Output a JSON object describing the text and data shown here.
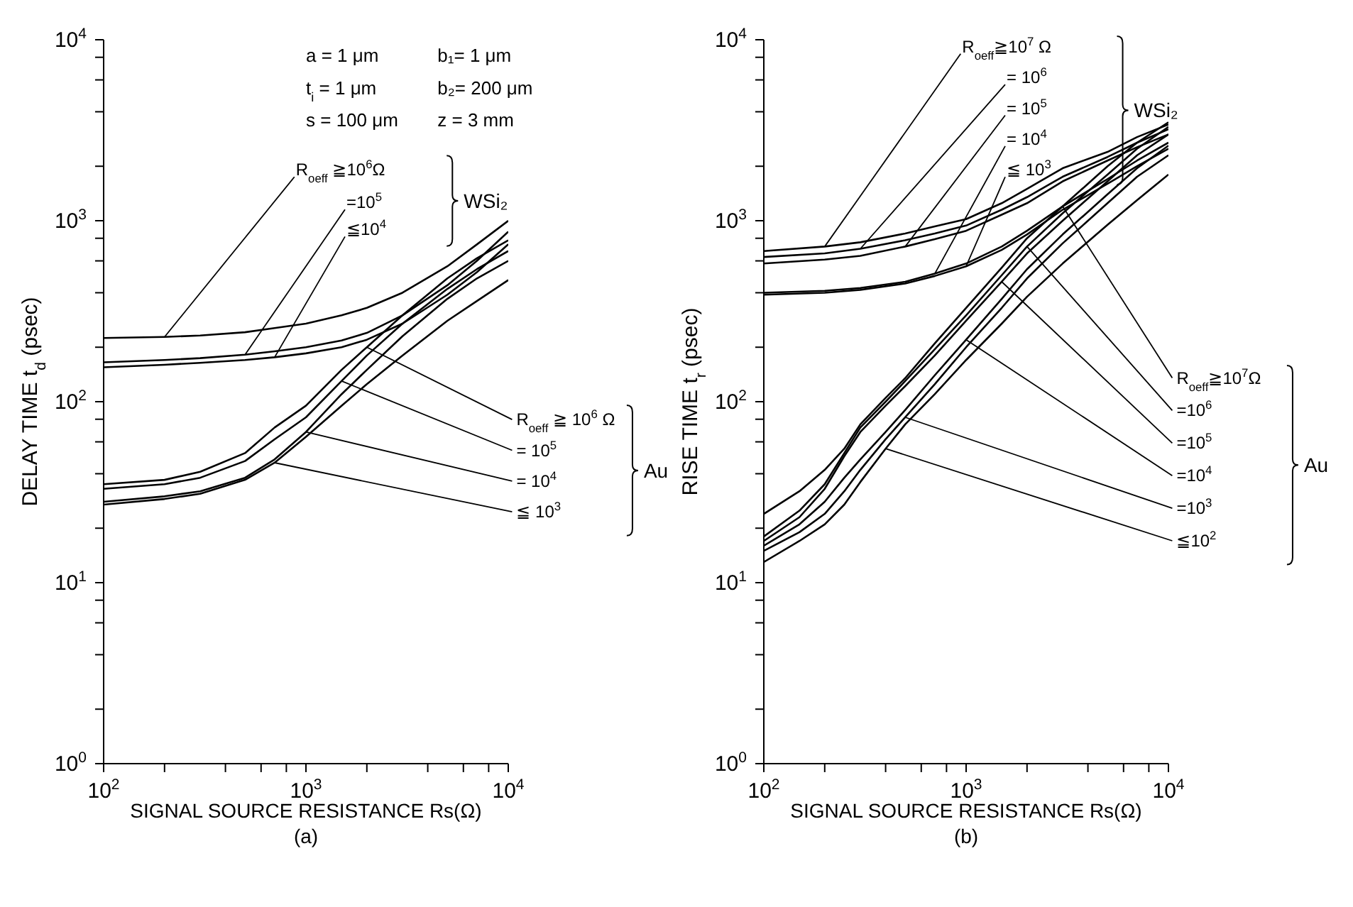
{
  "chart_data": [
    {
      "type": "line",
      "xlabel": "SIGNAL SOURCE RESISTANCE  Rs(Ω)",
      "ylabel": "DELAY TIME  t$_{d}$ (psec)",
      "log": "xy",
      "xlim": [
        100,
        10000
      ],
      "ylim": [
        1,
        10000
      ],
      "xticks": [
        {
          "value": 100,
          "label": "10$^{2}$"
        },
        {
          "value": 200,
          "label": null
        },
        {
          "value": 400,
          "label": null
        },
        {
          "value": 600,
          "label": null
        },
        {
          "value": 800,
          "label": null
        },
        {
          "value": 1000,
          "label": "10$^{3}$"
        },
        {
          "value": 2000,
          "label": null
        },
        {
          "value": 4000,
          "label": null
        },
        {
          "value": 6000,
          "label": null
        },
        {
          "value": 8000,
          "label": null
        },
        {
          "value": 10000,
          "label": "10$^{4}$"
        }
      ],
      "yticks": [
        {
          "value": 1,
          "label": "10$^{0}$"
        },
        {
          "value": 2,
          "label": null
        },
        {
          "value": 4,
          "label": null
        },
        {
          "value": 6,
          "label": null
        },
        {
          "value": 8,
          "label": null
        },
        {
          "value": 10,
          "label": "10$^{1}$"
        },
        {
          "value": 20,
          "label": null
        },
        {
          "value": 40,
          "label": null
        },
        {
          "value": 60,
          "label": null
        },
        {
          "value": 80,
          "label": null
        },
        {
          "value": 100,
          "label": "10$^{2}$"
        },
        {
          "value": 200,
          "label": null
        },
        {
          "value": 400,
          "label": null
        },
        {
          "value": 600,
          "label": null
        },
        {
          "value": 800,
          "label": null
        },
        {
          "value": 1000,
          "label": "10$^{3}$"
        },
        {
          "value": 2000,
          "label": null
        },
        {
          "value": 4000,
          "label": null
        },
        {
          "value": 6000,
          "label": null
        },
        {
          "value": 8000,
          "label": null
        },
        {
          "value": 10000,
          "label": "10$^{4}$"
        }
      ],
      "grid": false,
      "marker": "none",
      "line_style": "solid",
      "x": [
        100,
        200,
        300,
        500,
        700,
        1000,
        1500,
        2000,
        3000,
        5000,
        7000,
        10000
      ],
      "series": [
        {
          "name": "R$_{oeff}$ ≧10$^{6}$Ω",
          "color": "#000000",
          "values": [
            225,
            228,
            232,
            242,
            255,
            270,
            300,
            330,
            400,
            560,
            740,
            1000
          ]
        },
        {
          "name": "=10$^{5}$",
          "color": "#000000",
          "values": [
            165,
            170,
            174,
            182,
            190,
            200,
            218,
            240,
            300,
            440,
            600,
            870
          ]
        },
        {
          "name": "≦10$^{4}$",
          "color": "#000000",
          "values": [
            155,
            160,
            164,
            170,
            176,
            185,
            200,
            220,
            270,
            390,
            520,
            740
          ]
        },
        {
          "name": "R$_{oeff}$ ≧ 10$^{6}$ Ω",
          "color": "#000000",
          "values": [
            35,
            37,
            41,
            52,
            72,
            95,
            150,
            200,
            300,
            480,
            620,
            780
          ]
        },
        {
          "name": "= 10$^{5}$",
          "color": "#000000",
          "values": [
            33,
            35,
            38,
            47,
            62,
            82,
            130,
            180,
            270,
            420,
            540,
            680
          ]
        },
        {
          "name": "= 10$^{4}$",
          "color": "#000000",
          "values": [
            28,
            30,
            32,
            38,
            48,
            68,
            110,
            150,
            230,
            370,
            480,
            600
          ]
        },
        {
          "name": "≦ 10$^{3}$",
          "color": "#000000",
          "values": [
            27,
            29,
            31,
            37,
            46,
            64,
            95,
            125,
            180,
            280,
            360,
            470
          ]
        }
      ],
      "annotations": [
        "a = 1 μm",
        "t$_{i}$ = 1 μm",
        "s = 100 μm",
        "b₁= 1 μm",
        "b₂= 200 μm",
        "z = 3 mm",
        "WSi₂",
        "Au",
        "(a)"
      ]
    },
    {
      "type": "line",
      "xlabel": "SIGNAL SOURCE RESISTANCE  Rs(Ω)",
      "ylabel": "RISE  TIME  t$_{r}$ (psec)",
      "log": "xy",
      "xlim": [
        100,
        10000
      ],
      "ylim": [
        1,
        10000
      ],
      "xticks": [
        {
          "value": 100,
          "label": "10$^{2}$"
        },
        {
          "value": 200,
          "label": null
        },
        {
          "value": 400,
          "label": null
        },
        {
          "value": 600,
          "label": null
        },
        {
          "value": 800,
          "label": null
        },
        {
          "value": 1000,
          "label": "10$^{3}$"
        },
        {
          "value": 2000,
          "label": null
        },
        {
          "value": 4000,
          "label": null
        },
        {
          "value": 6000,
          "label": null
        },
        {
          "value": 8000,
          "label": null
        },
        {
          "value": 10000,
          "label": "10$^{4}$"
        }
      ],
      "yticks": [
        {
          "value": 1,
          "label": "10$^{0}$"
        },
        {
          "value": 2,
          "label": null
        },
        {
          "value": 4,
          "label": null
        },
        {
          "value": 6,
          "label": null
        },
        {
          "value": 8,
          "label": null
        },
        {
          "value": 10,
          "label": "10$^{1}$"
        },
        {
          "value": 20,
          "label": null
        },
        {
          "value": 40,
          "label": null
        },
        {
          "value": 60,
          "label": null
        },
        {
          "value": 80,
          "label": null
        },
        {
          "value": 100,
          "label": "10$^{2}$"
        },
        {
          "value": 200,
          "label": null
        },
        {
          "value": 400,
          "label": null
        },
        {
          "value": 600,
          "label": null
        },
        {
          "value": 800,
          "label": null
        },
        {
          "value": 1000,
          "label": "10$^{3}$"
        },
        {
          "value": 2000,
          "label": null
        },
        {
          "value": 4000,
          "label": null
        },
        {
          "value": 6000,
          "label": null
        },
        {
          "value": 8000,
          "label": null
        },
        {
          "value": 10000,
          "label": "10$^{4}$"
        }
      ],
      "grid": false,
      "marker": "none",
      "line_style": "solid",
      "series": [
        {
          "name": "R$_{oeff}$≧10$^{7}$ Ω",
          "color": "#000000",
          "x": [
            100,
            200,
            300,
            500,
            700,
            1000,
            1500,
            2000,
            3000,
            5000,
            7000,
            10000
          ],
          "values": [
            680,
            720,
            760,
            850,
            930,
            1020,
            1250,
            1500,
            1950,
            2400,
            2900,
            3400
          ]
        },
        {
          "name": "= 10$^{6}$",
          "color": "#000000",
          "x": [
            100,
            200,
            300,
            500,
            700,
            1000,
            1500,
            2000,
            3000,
            5000,
            7000,
            10000
          ],
          "values": [
            630,
            660,
            700,
            780,
            850,
            940,
            1150,
            1350,
            1750,
            2250,
            2700,
            3200
          ]
        },
        {
          "name": "= 10$^{5}$",
          "color": "#000000",
          "x": [
            100,
            200,
            300,
            500,
            700,
            1000,
            1500,
            2000,
            3000,
            5000,
            7000,
            10000
          ],
          "values": [
            580,
            610,
            640,
            720,
            790,
            880,
            1080,
            1250,
            1650,
            2150,
            2550,
            3000
          ]
        },
        {
          "name": "= 10$^{4}$",
          "color": "#000000",
          "x": [
            100,
            200,
            300,
            500,
            700,
            1000,
            1500,
            2000,
            3000,
            5000,
            7000,
            10000
          ],
          "values": [
            400,
            410,
            425,
            460,
            510,
            580,
            720,
            880,
            1200,
            1700,
            2150,
            2700
          ]
        },
        {
          "name": "≦ 10$^{3}$",
          "color": "#000000",
          "x": [
            100,
            200,
            300,
            500,
            700,
            1000,
            1500,
            2000,
            3000,
            5000,
            7000,
            10000
          ],
          "values": [
            390,
            400,
            415,
            450,
            495,
            560,
            690,
            840,
            1150,
            1600,
            2000,
            2500
          ]
        },
        {
          "name": "R$_{oeff}$≧10$^{7}$Ω",
          "color": "#000000",
          "x": [
            100,
            150,
            200,
            250,
            300,
            400,
            500,
            700,
            1000,
            1500,
            2000,
            3000,
            5000,
            7000,
            10000
          ],
          "values": [
            24,
            32,
            42,
            55,
            75,
            105,
            135,
            210,
            330,
            550,
            800,
            1200,
            2000,
            2700,
            3500
          ]
        },
        {
          "name": "=10$^{6}$",
          "color": "#000000",
          "x": [
            100,
            150,
            200,
            250,
            300,
            400,
            500,
            700,
            1000,
            1500,
            2000,
            3000,
            5000,
            7000,
            10000
          ],
          "values": [
            18,
            25,
            35,
            52,
            72,
            100,
            130,
            195,
            300,
            500,
            720,
            1100,
            1800,
            2500,
            3300
          ]
        },
        {
          "name": "=10$^{5}$",
          "color": "#000000",
          "x": [
            100,
            150,
            200,
            250,
            300,
            400,
            500,
            700,
            1000,
            1500,
            2000,
            3000,
            5000,
            7000,
            10000
          ],
          "values": [
            17,
            23,
            33,
            50,
            68,
            95,
            122,
            180,
            280,
            460,
            660,
            1000,
            1650,
            2300,
            3000
          ]
        },
        {
          "name": "=10$^{4}$",
          "color": "#000000",
          "x": [
            100,
            150,
            200,
            250,
            300,
            400,
            500,
            700,
            1000,
            1500,
            2000,
            3000,
            5000,
            7000,
            10000
          ],
          "values": [
            16,
            21,
            28,
            38,
            48,
            68,
            90,
            140,
            220,
            370,
            540,
            840,
            1400,
            1950,
            2600
          ]
        },
        {
          "name": "=10$^{3}$",
          "color": "#000000",
          "x": [
            100,
            150,
            200,
            250,
            300,
            400,
            500,
            700,
            1000,
            1500,
            2000,
            3000,
            5000,
            7000,
            10000
          ],
          "values": [
            15,
            19,
            24,
            32,
            42,
            62,
            82,
            125,
            200,
            330,
            480,
            750,
            1250,
            1750,
            2300
          ]
        },
        {
          "name": "≦10$^{2}$",
          "color": "#000000",
          "x": [
            100,
            150,
            200,
            250,
            300,
            400,
            500,
            700,
            1000,
            1500,
            2000,
            3000,
            5000,
            7000,
            10000
          ],
          "values": [
            13,
            17,
            21,
            27,
            36,
            55,
            75,
            110,
            170,
            270,
            380,
            580,
            950,
            1300,
            1800
          ]
        }
      ],
      "annotations": [
        "WSi₂",
        "Au",
        "(b)"
      ]
    }
  ]
}
